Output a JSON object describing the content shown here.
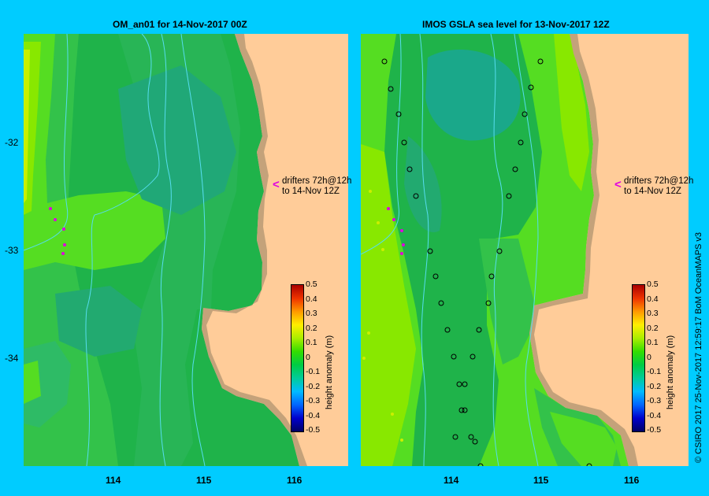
{
  "left_panel": {
    "title": "OM_an01  for 14-Nov-2017 00Z"
  },
  "right_panel": {
    "title": "IMOS GSLA sea level  for 13-Nov-2017 12Z"
  },
  "y_axis": {
    "labels": [
      "-32",
      "-33",
      "-34"
    ]
  },
  "x_axis": {
    "labels": [
      "114",
      "115",
      "116"
    ]
  },
  "drifters": {
    "line1": "drifters 72h@12h",
    "line2": "to 14-Nov 12Z",
    "marker": "<"
  },
  "colorbar": {
    "ticks": [
      "0.5",
      "0.4",
      "0.3",
      "0.2",
      "0.1",
      "0",
      "-0.1",
      "-0.2",
      "-0.3",
      "-0.4",
      "-0.5"
    ],
    "label": "height anomaly (m)",
    "colors": [
      "#000066",
      "#0000cc",
      "#0066ff",
      "#00bbff",
      "#00cc99",
      "#00cc44",
      "#33dd00",
      "#aaee00",
      "#ffee00",
      "#ff9900",
      "#ee3300",
      "#aa0000"
    ]
  },
  "credit": "© CSIRO 2017   25-Nov-2017 12:59:17 BoM OceanMAPS v3"
}
